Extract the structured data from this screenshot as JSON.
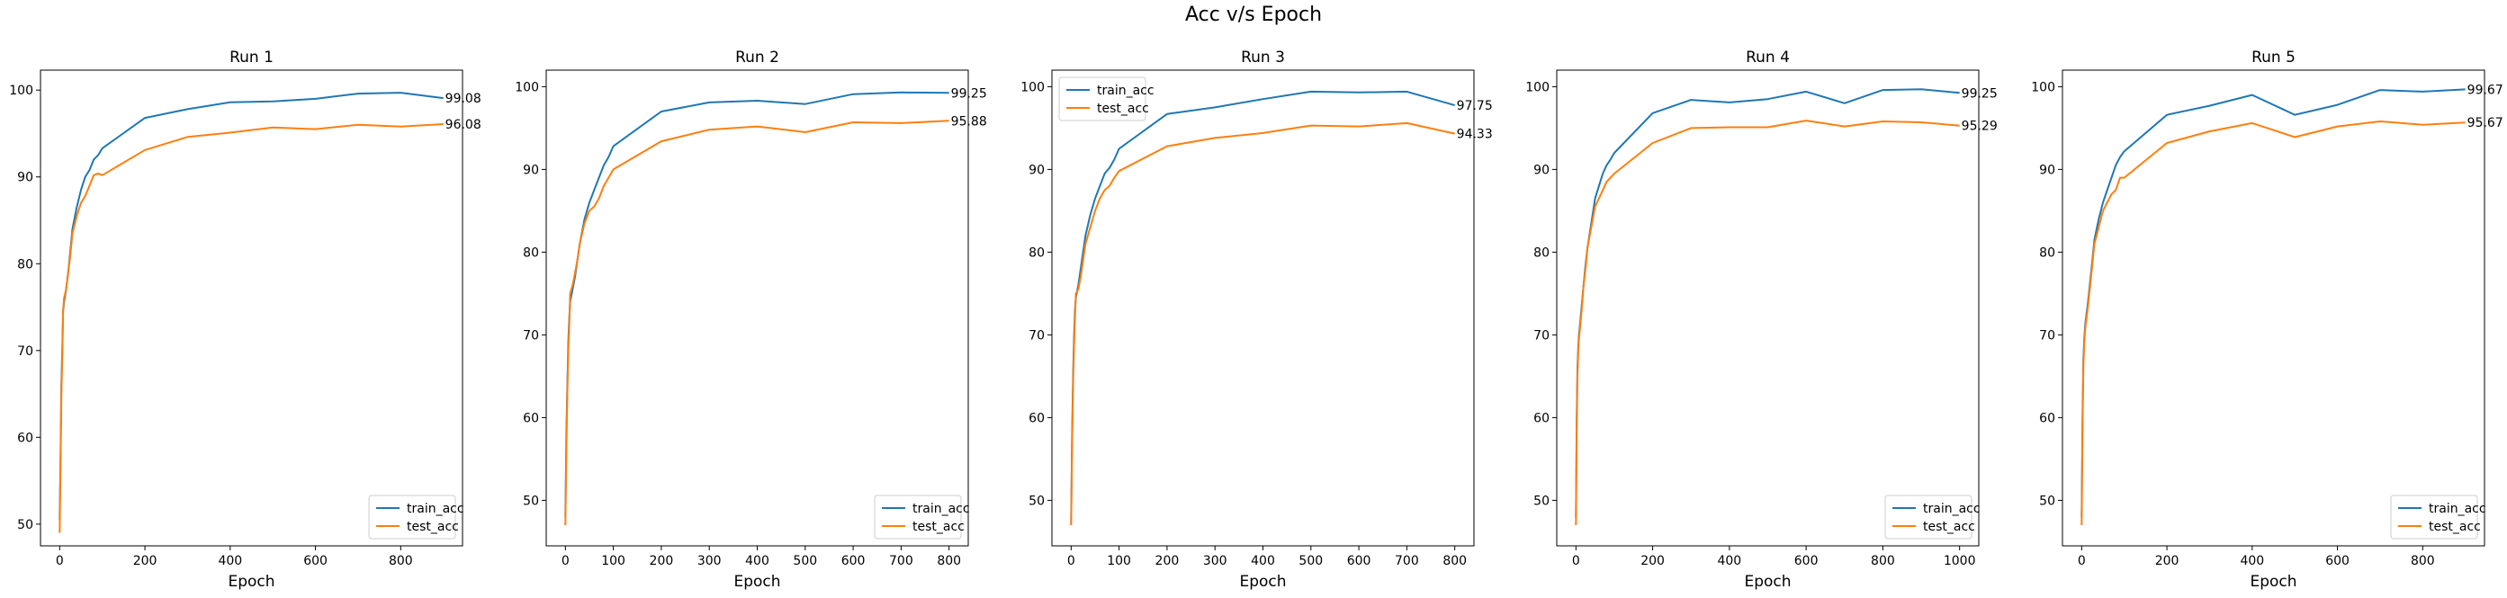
{
  "figure": {
    "title": "Acc v/s Epoch",
    "colors": {
      "train": "#1f77b4",
      "test": "#ff7f0e",
      "axes": "#000000"
    }
  },
  "chart_data": [
    {
      "type": "line",
      "title": "Run 1",
      "xlabel": "Epoch",
      "ylabel": "",
      "xlim": [
        -45,
        945
      ],
      "ylim": [
        47.5,
        102.3
      ],
      "xticks": [
        0,
        200,
        400,
        600,
        800
      ],
      "yticks": [
        50,
        60,
        70,
        80,
        90,
        100
      ],
      "grid": false,
      "legend_position": "lower right",
      "series": [
        {
          "name": "train_acc",
          "color": "#1f77b4",
          "x": [
            0,
            2,
            4,
            6,
            8,
            10,
            15,
            20,
            25,
            30,
            40,
            50,
            60,
            70,
            80,
            90,
            100,
            200,
            300,
            400,
            500,
            600,
            700,
            800,
            900
          ],
          "y": [
            50.5,
            58,
            66,
            70,
            74.5,
            75.5,
            77,
            79,
            81.5,
            84,
            86.5,
            88.5,
            90,
            90.8,
            92,
            92.5,
            93.3,
            96.8,
            97.8,
            98.6,
            98.7,
            99.0,
            99.6,
            99.7,
            99.08
          ],
          "end_label": "99.08"
        },
        {
          "name": "test_acc",
          "color": "#ff7f0e",
          "x": [
            0,
            2,
            4,
            6,
            8,
            10,
            15,
            20,
            25,
            30,
            40,
            50,
            60,
            70,
            80,
            90,
            100,
            200,
            300,
            400,
            500,
            600,
            700,
            800,
            900
          ],
          "y": [
            49,
            57,
            65,
            69,
            74.5,
            76,
            77,
            79,
            81,
            83.5,
            85.5,
            87,
            87.8,
            89,
            90.2,
            90.4,
            90.2,
            93.1,
            94.6,
            95.1,
            95.7,
            95.5,
            96.0,
            95.8,
            96.08
          ],
          "end_label": "96.08"
        }
      ]
    },
    {
      "type": "line",
      "title": "Run 2",
      "xlabel": "Epoch",
      "ylabel": "",
      "xlim": [
        -40,
        840
      ],
      "ylim": [
        44.5,
        102.0
      ],
      "xticks": [
        0,
        100,
        200,
        300,
        400,
        500,
        600,
        700,
        800
      ],
      "yticks": [
        50,
        60,
        70,
        80,
        90,
        100
      ],
      "grid": false,
      "legend_position": "lower right",
      "series": [
        {
          "name": "train_acc",
          "color": "#1f77b4",
          "x": [
            0,
            2,
            4,
            6,
            8,
            10,
            15,
            20,
            25,
            30,
            40,
            50,
            60,
            70,
            80,
            90,
            100,
            200,
            300,
            400,
            500,
            600,
            700,
            800
          ],
          "y": [
            48,
            58,
            64,
            69,
            72,
            74,
            75.5,
            77,
            79,
            81,
            84,
            86,
            87.5,
            89,
            90.5,
            91.5,
            92.8,
            97.0,
            98.1,
            98.3,
            97.9,
            99.1,
            99.3,
            99.25
          ],
          "end_label": "99.25"
        },
        {
          "name": "test_acc",
          "color": "#ff7f0e",
          "x": [
            0,
            2,
            4,
            6,
            8,
            10,
            15,
            20,
            25,
            30,
            40,
            50,
            60,
            70,
            80,
            90,
            100,
            200,
            300,
            400,
            500,
            600,
            700,
            800
          ],
          "y": [
            47,
            56,
            63,
            68,
            71,
            75,
            76,
            77.5,
            79,
            81,
            83.5,
            85,
            85.5,
            86.5,
            88,
            89,
            90,
            93.4,
            94.8,
            95.2,
            94.5,
            95.7,
            95.6,
            95.88
          ],
          "end_label": "95.88"
        }
      ]
    },
    {
      "type": "line",
      "title": "Run 3",
      "xlabel": "Epoch",
      "ylabel": "",
      "xlim": [
        -40,
        840
      ],
      "ylim": [
        44.5,
        102.0
      ],
      "xticks": [
        0,
        100,
        200,
        300,
        400,
        500,
        600,
        700,
        800
      ],
      "yticks": [
        50,
        60,
        70,
        80,
        90,
        100
      ],
      "grid": false,
      "legend_position": "upper left",
      "series": [
        {
          "name": "train_acc",
          "color": "#1f77b4",
          "x": [
            0,
            2,
            4,
            6,
            8,
            10,
            15,
            20,
            25,
            30,
            40,
            50,
            60,
            70,
            80,
            90,
            100,
            200,
            300,
            400,
            500,
            600,
            700,
            800
          ],
          "y": [
            47,
            58,
            65,
            69.5,
            73,
            74.5,
            76,
            78,
            80,
            82,
            84.5,
            86.5,
            88,
            89.5,
            90.2,
            91.2,
            92.5,
            96.7,
            97.5,
            98.5,
            99.4,
            99.3,
            99.4,
            97.75
          ],
          "end_label": "97.75"
        },
        {
          "name": "test_acc",
          "color": "#ff7f0e",
          "x": [
            0,
            2,
            4,
            6,
            8,
            10,
            15,
            20,
            25,
            30,
            40,
            50,
            60,
            70,
            80,
            90,
            100,
            200,
            300,
            400,
            500,
            600,
            700,
            800
          ],
          "y": [
            47,
            57,
            64,
            68.5,
            72,
            75,
            75.5,
            77,
            79,
            81,
            83,
            85,
            86.5,
            87.5,
            88,
            89,
            89.8,
            92.8,
            93.8,
            94.4,
            95.3,
            95.2,
            95.6,
            94.33
          ],
          "end_label": "94.33"
        }
      ]
    },
    {
      "type": "line",
      "title": "Run 4",
      "xlabel": "Epoch",
      "ylabel": "",
      "xlim": [
        -50,
        1050
      ],
      "ylim": [
        44.5,
        102.0
      ],
      "xticks": [
        0,
        200,
        400,
        600,
        800,
        1000
      ],
      "yticks": [
        50,
        60,
        70,
        80,
        90,
        100
      ],
      "grid": false,
      "legend_position": "lower right",
      "series": [
        {
          "name": "train_acc",
          "color": "#1f77b4",
          "x": [
            0,
            2,
            4,
            6,
            8,
            10,
            15,
            20,
            25,
            30,
            40,
            50,
            60,
            70,
            80,
            90,
            100,
            200,
            300,
            400,
            500,
            600,
            700,
            800,
            900,
            1000
          ],
          "y": [
            48,
            60,
            66,
            68.5,
            70,
            71,
            73.5,
            76,
            78.5,
            80.5,
            83.5,
            86.5,
            88,
            89.5,
            90.5,
            91.2,
            92,
            96.8,
            98.4,
            98.1,
            98.5,
            99.4,
            98.0,
            99.6,
            99.7,
            99.25
          ],
          "end_label": "99.25"
        },
        {
          "name": "test_acc",
          "color": "#ff7f0e",
          "x": [
            0,
            2,
            4,
            6,
            8,
            10,
            15,
            20,
            25,
            30,
            40,
            50,
            60,
            70,
            80,
            90,
            100,
            200,
            300,
            400,
            500,
            600,
            700,
            800,
            900,
            1000
          ],
          "y": [
            47,
            59,
            65,
            68,
            69.5,
            70.5,
            73,
            76,
            78,
            80.5,
            83,
            85.5,
            86.5,
            87.5,
            88.5,
            89,
            89.5,
            93.2,
            95.0,
            95.1,
            95.1,
            95.9,
            95.2,
            95.8,
            95.7,
            95.29
          ],
          "end_label": "95.29"
        }
      ]
    },
    {
      "type": "line",
      "title": "Run 5",
      "xlabel": "Epoch",
      "ylabel": "",
      "xlim": [
        -45,
        945
      ],
      "ylim": [
        44.5,
        102.0
      ],
      "xticks": [
        0,
        200,
        400,
        600,
        800
      ],
      "yticks": [
        50,
        60,
        70,
        80,
        90,
        100
      ],
      "grid": false,
      "legend_position": "lower right",
      "series": [
        {
          "name": "train_acc",
          "color": "#1f77b4",
          "x": [
            0,
            2,
            4,
            6,
            8,
            10,
            15,
            20,
            25,
            30,
            40,
            50,
            60,
            70,
            80,
            90,
            100,
            200,
            300,
            400,
            500,
            600,
            700,
            800,
            900
          ],
          "y": [
            48,
            60,
            67,
            69.5,
            71,
            72,
            74,
            76.5,
            79,
            81.5,
            84,
            86,
            87.5,
            89,
            90.5,
            91.5,
            92.2,
            96.6,
            97.7,
            99.0,
            96.6,
            97.8,
            99.6,
            99.4,
            99.67
          ],
          "end_label": "99.67"
        },
        {
          "name": "test_acc",
          "color": "#ff7f0e",
          "x": [
            0,
            2,
            4,
            6,
            8,
            10,
            15,
            20,
            25,
            30,
            40,
            50,
            60,
            70,
            80,
            90,
            100,
            200,
            300,
            400,
            500,
            600,
            700,
            800,
            900
          ],
          "y": [
            47,
            59,
            66,
            69,
            70.5,
            71.5,
            73.5,
            76,
            78.5,
            81,
            83,
            85,
            86,
            87,
            87.5,
            89,
            89,
            93.2,
            94.6,
            95.6,
            93.9,
            95.2,
            95.8,
            95.4,
            95.67
          ],
          "end_label": "95.67"
        }
      ]
    }
  ]
}
